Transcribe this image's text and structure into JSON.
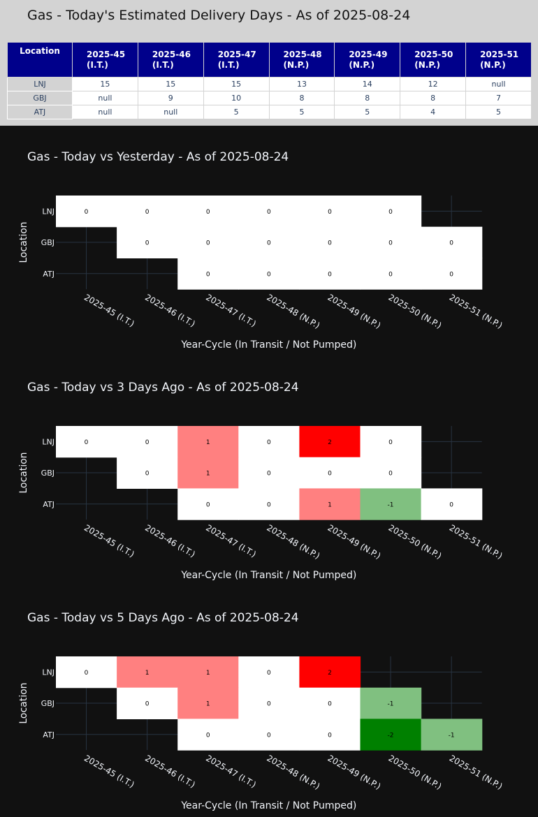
{
  "table": {
    "title": "Gas - Today's Estimated Delivery Days - As of 2025-08-24",
    "location_header": "Location",
    "columns": [
      {
        "cycle": "2025-45",
        "status": "(I.T.)"
      },
      {
        "cycle": "2025-46",
        "status": "(I.T.)"
      },
      {
        "cycle": "2025-47",
        "status": "(I.T.)"
      },
      {
        "cycle": "2025-48",
        "status": "(N.P.)"
      },
      {
        "cycle": "2025-49",
        "status": "(N.P.)"
      },
      {
        "cycle": "2025-50",
        "status": "(N.P.)"
      },
      {
        "cycle": "2025-51",
        "status": "(N.P.)"
      }
    ],
    "rows": [
      {
        "location": "LNJ",
        "values": [
          "15",
          "15",
          "15",
          "13",
          "14",
          "12",
          "null"
        ]
      },
      {
        "location": "GBJ",
        "values": [
          "null",
          "9",
          "10",
          "8",
          "8",
          "8",
          "7"
        ]
      },
      {
        "location": "ATJ",
        "values": [
          "null",
          "null",
          "5",
          "5",
          "5",
          "4",
          "5"
        ]
      }
    ],
    "colors": {
      "header_bg": "#00008b",
      "panel_bg": "#d3d3d3"
    }
  },
  "chart_data": [
    {
      "type": "heatmap",
      "title": "Gas - Today vs Yesterday - As of 2025-08-24",
      "xlabel": "Year-Cycle (In Transit / Not Pumped)",
      "ylabel": "Location",
      "x": [
        "2025-45 (I.T.)",
        "2025-46 (I.T.)",
        "2025-47 (I.T.)",
        "2025-48 (N.P.)",
        "2025-49 (N.P.)",
        "2025-50 (N.P.)",
        "2025-51 (N.P.)"
      ],
      "y": [
        "LNJ",
        "GBJ",
        "ATJ"
      ],
      "z": [
        [
          0,
          0,
          0,
          0,
          0,
          0,
          null
        ],
        [
          null,
          0,
          0,
          0,
          0,
          0,
          0
        ],
        [
          null,
          null,
          0,
          0,
          0,
          0,
          0
        ]
      ]
    },
    {
      "type": "heatmap",
      "title": "Gas - Today vs 3 Days Ago - As of 2025-08-24",
      "xlabel": "Year-Cycle (In Transit / Not Pumped)",
      "ylabel": "Location",
      "x": [
        "2025-45 (I.T.)",
        "2025-46 (I.T.)",
        "2025-47 (I.T.)",
        "2025-48 (N.P.)",
        "2025-49 (N.P.)",
        "2025-50 (N.P.)",
        "2025-51 (N.P.)"
      ],
      "y": [
        "LNJ",
        "GBJ",
        "ATJ"
      ],
      "z": [
        [
          0,
          0,
          1,
          0,
          2,
          0,
          null
        ],
        [
          null,
          0,
          1,
          0,
          0,
          0,
          null
        ],
        [
          null,
          null,
          0,
          0,
          1,
          -1,
          0
        ]
      ]
    },
    {
      "type": "heatmap",
      "title": "Gas - Today vs 5 Days Ago - As of 2025-08-24",
      "xlabel": "Year-Cycle (In Transit / Not Pumped)",
      "ylabel": "Location",
      "x": [
        "2025-45 (I.T.)",
        "2025-46 (I.T.)",
        "2025-47 (I.T.)",
        "2025-48 (N.P.)",
        "2025-49 (N.P.)",
        "2025-50 (N.P.)",
        "2025-51 (N.P.)"
      ],
      "y": [
        "LNJ",
        "GBJ",
        "ATJ"
      ],
      "z": [
        [
          0,
          1,
          1,
          0,
          2,
          null,
          null
        ],
        [
          null,
          0,
          1,
          0,
          0,
          -1,
          null
        ],
        [
          null,
          null,
          0,
          0,
          0,
          -2,
          -1
        ]
      ]
    }
  ],
  "colorscale": {
    "-2": "#008000",
    "-1": "#80c080",
    "0": "#ffffff",
    "1": "#ff8080",
    "2": "#ff0000"
  },
  "theme": {
    "background": "#111111",
    "grid": "#283442",
    "text": "#f2f5fa"
  }
}
